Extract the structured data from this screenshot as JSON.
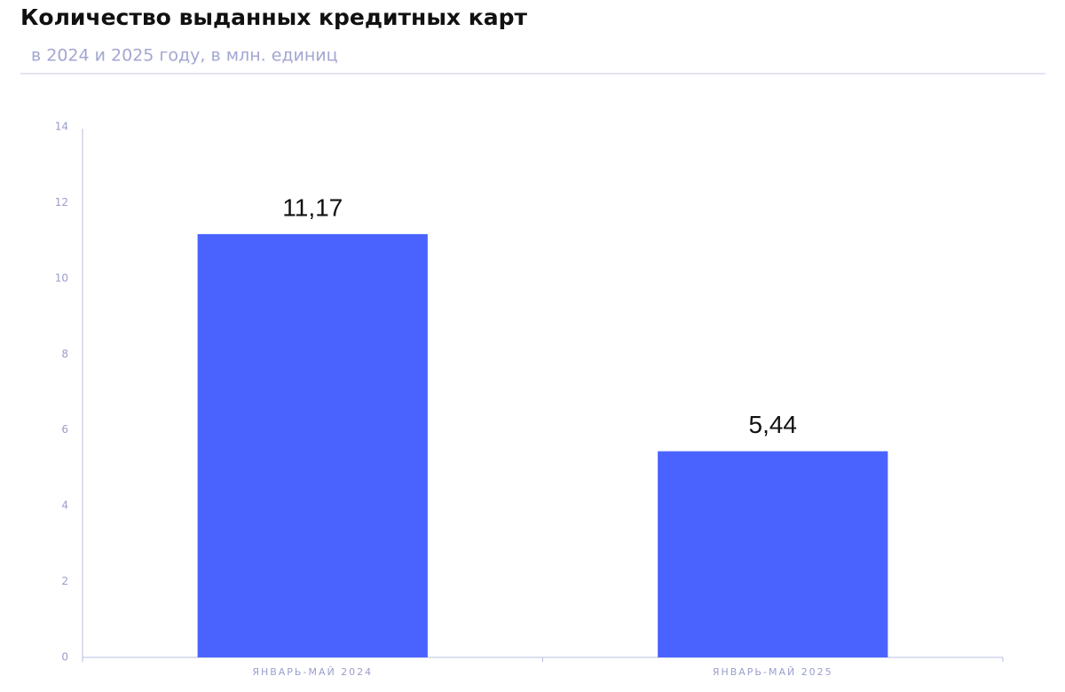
{
  "chart_data": {
    "type": "bar",
    "title": "Количество выданных кредитных карт",
    "subtitle": "в 2024 и 2025 году, в млн. единиц",
    "categories": [
      "ЯНВАРЬ-МАЙ 2024",
      "ЯНВАРЬ-МАЙ 2025"
    ],
    "values": [
      11.17,
      5.44
    ],
    "value_labels": [
      "11,17",
      "5,44"
    ],
    "color": "#4a63ff",
    "ylim": [
      0,
      14
    ],
    "yticks": [
      0,
      2,
      4,
      6,
      8,
      10,
      12,
      14
    ],
    "grid": false
  }
}
